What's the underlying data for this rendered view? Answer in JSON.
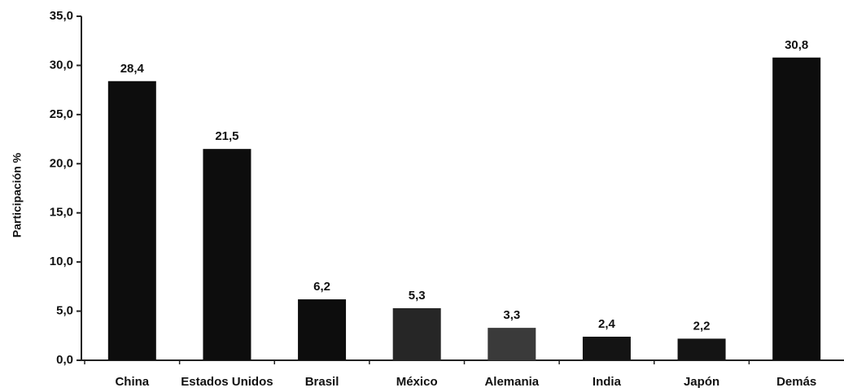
{
  "chart_data": {
    "type": "bar",
    "title": "",
    "xlabel": "",
    "ylabel": "Participación %",
    "categories": [
      "China",
      "Estados Unidos",
      "Brasil",
      "México",
      "Alemania",
      "India",
      "Japón",
      "Demás"
    ],
    "values": [
      28.4,
      21.5,
      6.2,
      5.3,
      3.3,
      2.4,
      2.2,
      30.8
    ],
    "value_labels": [
      "28,4",
      "21,5",
      "6,2",
      "5,3",
      "3,3",
      "2,4",
      "2,2",
      "30,8"
    ],
    "ylim": [
      0,
      35
    ],
    "yticks": [
      0,
      5,
      10,
      15,
      20,
      25,
      30,
      35
    ],
    "ytick_labels": [
      "0,0",
      "5,0",
      "10,0",
      "15,0",
      "20,0",
      "25,0",
      "30,0",
      "35,0"
    ],
    "grid": false,
    "legend": "none",
    "bar_color": "#0d0d0d",
    "bar_colors": [
      "#0d0d0d",
      "#0d0d0d",
      "#0d0d0d",
      "#262626",
      "#3a3a3a",
      "#141414",
      "#141414",
      "#0d0d0d"
    ]
  }
}
